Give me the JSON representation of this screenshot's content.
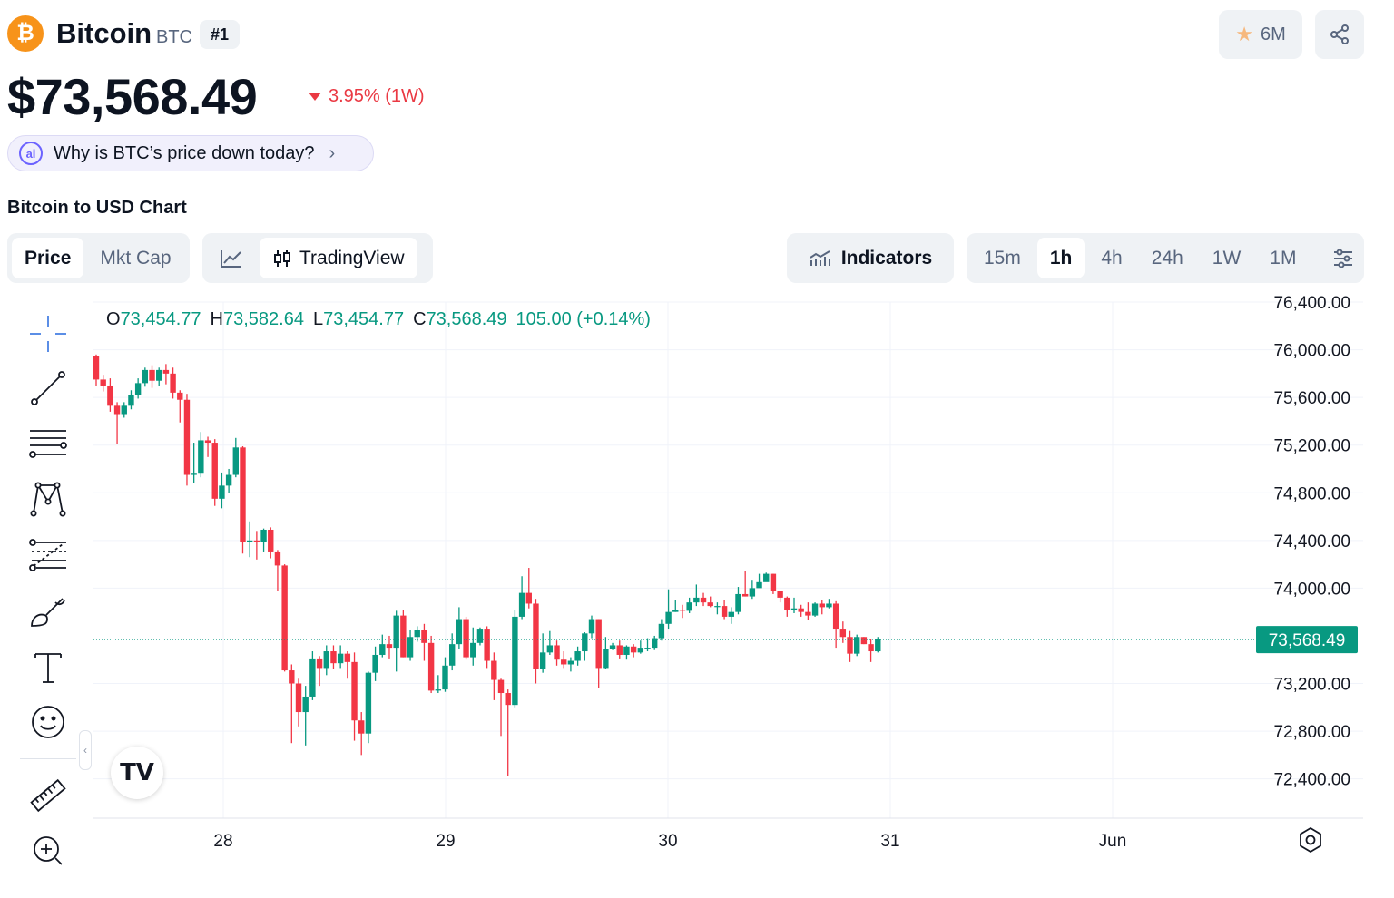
{
  "header": {
    "logo_glyph": "₿",
    "name": "Bitcoin",
    "symbol": "BTC",
    "rank": "#1",
    "watchlist_count": "6M",
    "price": "$73,568.49",
    "change": "3.95% (1W)",
    "change_color": "#ea3943"
  },
  "ai_prompt": {
    "label": "Why is BTC’s price down today?",
    "chevron": "›"
  },
  "chart_heading": "Bitcoin to USD Chart",
  "toolbar": {
    "price_tab": "Price",
    "mktcap_tab": "Mkt Cap",
    "tradingview": "TradingView",
    "indicators": "Indicators",
    "intervals": [
      "15m",
      "1h",
      "4h",
      "24h",
      "1W",
      "1M"
    ],
    "active_interval": "1h"
  },
  "ohlc": {
    "o_key": "O",
    "o": "73,454.77",
    "h_key": "H",
    "h": "73,582.64",
    "l_key": "L",
    "l": "73,454.77",
    "c_key": "C",
    "c": "73,568.49",
    "change": "105.00 (+0.14%)"
  },
  "tv_logo": "TV",
  "icons": [
    "bitcoin-logo-icon",
    "star-icon",
    "share-icon",
    "ai-sparkle-icon",
    "chevron-right-icon",
    "line-chart-icon",
    "candlestick-icon",
    "indicators-icon",
    "settings-sliders-icon",
    "crosshair-icon",
    "trend-line-icon",
    "horizontal-lines-icon",
    "pattern-icon",
    "fib-icon",
    "brush-icon",
    "text-icon",
    "emoji-icon",
    "ruler-icon",
    "zoom-in-icon",
    "gear-icon"
  ],
  "colors": {
    "up": "#089981",
    "down": "#f23645",
    "current_price_label": "#089981"
  },
  "chart_data": {
    "type": "candlestick",
    "title": "",
    "xlabel": "",
    "ylabel": "",
    "x_ticks": [
      "28",
      "29",
      "30",
      "31",
      "Jun"
    ],
    "y_ticks": [
      "76,400.00",
      "76,000.00",
      "75,600.00",
      "75,200.00",
      "74,800.00",
      "74,400.00",
      "74,000.00",
      "73,200.00",
      "72,800.00",
      "72,400.00"
    ],
    "ylim": [
      72070,
      76400
    ],
    "current_price_label": "73,568.49",
    "current_price": 73568.49,
    "candles": [
      [
        75950,
        75750,
        75960,
        75700
      ],
      [
        75750,
        75700,
        75790,
        75650
      ],
      [
        75700,
        75530,
        75760,
        75480
      ],
      [
        75530,
        75460,
        75560,
        75210
      ],
      [
        75460,
        75530,
        75560,
        75430
      ],
      [
        75530,
        75620,
        75660,
        75500
      ],
      [
        75620,
        75720,
        75760,
        75590
      ],
      [
        75720,
        75830,
        75850,
        75690
      ],
      [
        75830,
        75740,
        75870,
        75680
      ],
      [
        75740,
        75830,
        75850,
        75700
      ],
      [
        75830,
        75800,
        75880,
        75710
      ],
      [
        75800,
        75640,
        75850,
        75590
      ],
      [
        75640,
        75580,
        75660,
        75390
      ],
      [
        75580,
        74950,
        75630,
        74860
      ],
      [
        74950,
        74960,
        75220,
        74880
      ],
      [
        74960,
        75240,
        75310,
        74930
      ],
      [
        75240,
        75220,
        75270,
        75100
      ],
      [
        75220,
        74750,
        75250,
        74690
      ],
      [
        74750,
        74860,
        74970,
        74670
      ],
      [
        74860,
        74950,
        75000,
        74800
      ],
      [
        74950,
        75180,
        75260,
        74930
      ],
      [
        75180,
        74390,
        75190,
        74290
      ],
      [
        74390,
        74400,
        74560,
        74260
      ],
      [
        74400,
        74390,
        74480,
        74240
      ],
      [
        74390,
        74490,
        74500,
        74300
      ],
      [
        74490,
        74300,
        74510,
        74250
      ],
      [
        74300,
        74190,
        74320,
        73980
      ],
      [
        74190,
        73310,
        74200,
        73300
      ],
      [
        73310,
        73200,
        73360,
        72700
      ],
      [
        73200,
        72960,
        73240,
        72840
      ],
      [
        72960,
        73090,
        73180,
        72680
      ],
      [
        73090,
        73410,
        73470,
        73060
      ],
      [
        73410,
        73330,
        73430,
        73180
      ],
      [
        73330,
        73470,
        73520,
        73270
      ],
      [
        73470,
        73370,
        73520,
        73320
      ],
      [
        73370,
        73450,
        73520,
        73330
      ],
      [
        73450,
        73380,
        73470,
        73240
      ],
      [
        73380,
        72890,
        73460,
        72720
      ],
      [
        72890,
        72780,
        72960,
        72600
      ],
      [
        72780,
        73290,
        73300,
        72700
      ],
      [
        73290,
        73440,
        73510,
        73220
      ],
      [
        73440,
        73530,
        73610,
        73420
      ],
      [
        73530,
        73500,
        73600,
        73410
      ],
      [
        73500,
        73770,
        73810,
        73300
      ],
      [
        73770,
        73420,
        73820,
        73420
      ],
      [
        73420,
        73590,
        73650,
        73390
      ],
      [
        73590,
        73650,
        73680,
        73550
      ],
      [
        73650,
        73540,
        73700,
        73390
      ],
      [
        73540,
        73140,
        73600,
        73120
      ],
      [
        73140,
        73150,
        73270,
        73120
      ],
      [
        73150,
        73350,
        73420,
        73130
      ],
      [
        73350,
        73530,
        73620,
        73310
      ],
      [
        73530,
        73740,
        73840,
        73490
      ],
      [
        73740,
        73420,
        73760,
        73400
      ],
      [
        73420,
        73540,
        73670,
        73350
      ],
      [
        73540,
        73660,
        73670,
        73520
      ],
      [
        73660,
        73390,
        73680,
        73330
      ],
      [
        73390,
        73230,
        73460,
        73060
      ],
      [
        73230,
        73120,
        73240,
        72760
      ],
      [
        73120,
        73020,
        73150,
        72420
      ],
      [
        73020,
        73760,
        73820,
        73000
      ],
      [
        73760,
        73960,
        74100,
        73740
      ],
      [
        73960,
        73870,
        74170,
        73830
      ],
      [
        73870,
        73320,
        73910,
        73200
      ],
      [
        73320,
        73460,
        73620,
        73290
      ],
      [
        73460,
        73520,
        73640,
        73440
      ],
      [
        73520,
        73400,
        73560,
        73350
      ],
      [
        73400,
        73360,
        73470,
        73330
      ],
      [
        73360,
        73390,
        73420,
        73300
      ],
      [
        73390,
        73470,
        73510,
        73350
      ],
      [
        73470,
        73620,
        73630,
        73390
      ],
      [
        73620,
        73740,
        73770,
        73580
      ],
      [
        73740,
        73330,
        73740,
        73160
      ],
      [
        73330,
        73490,
        73590,
        73320
      ],
      [
        73490,
        73520,
        73540,
        73480
      ],
      [
        73520,
        73440,
        73560,
        73410
      ],
      [
        73440,
        73510,
        73520,
        73400
      ],
      [
        73510,
        73460,
        73530,
        73420
      ],
      [
        73460,
        73500,
        73560,
        73450
      ],
      [
        73500,
        73500,
        73580,
        73470
      ],
      [
        73500,
        73580,
        73600,
        73480
      ],
      [
        73580,
        73700,
        73740,
        73560
      ],
      [
        73700,
        73800,
        73990,
        73660
      ],
      [
        73800,
        73820,
        73900,
        73800
      ],
      [
        73820,
        73810,
        73860,
        73750
      ],
      [
        73810,
        73880,
        73920,
        73790
      ],
      [
        73880,
        73920,
        74030,
        73850
      ],
      [
        73920,
        73880,
        73960,
        73850
      ],
      [
        73880,
        73850,
        73930,
        73840
      ],
      [
        73850,
        73850,
        73880,
        73780
      ],
      [
        73850,
        73760,
        73900,
        73740
      ],
      [
        73760,
        73800,
        73840,
        73700
      ],
      [
        73800,
        73950,
        74010,
        73780
      ],
      [
        73950,
        73930,
        74140,
        73930
      ],
      [
        73930,
        74000,
        74070,
        73910
      ],
      [
        74000,
        74050,
        74120,
        74040
      ],
      [
        74050,
        74120,
        74130,
        74070
      ],
      [
        74120,
        73980,
        74120,
        73950
      ],
      [
        73980,
        73920,
        73980,
        73880
      ],
      [
        73920,
        73820,
        73930,
        73760
      ],
      [
        73820,
        73830,
        73920,
        73790
      ],
      [
        73830,
        73800,
        73860,
        73760
      ],
      [
        73800,
        73770,
        73880,
        73730
      ],
      [
        73770,
        73870,
        73880,
        73760
      ],
      [
        73870,
        73840,
        73900,
        73780
      ],
      [
        73840,
        73870,
        73910,
        73830
      ],
      [
        73870,
        73660,
        73890,
        73500
      ],
      [
        73660,
        73590,
        73720,
        73540
      ],
      [
        73590,
        73450,
        73640,
        73380
      ],
      [
        73450,
        73590,
        73610,
        73430
      ],
      [
        73590,
        73530,
        73590,
        73530
      ],
      [
        73530,
        73470,
        73570,
        73380
      ],
      [
        73470,
        73570,
        73590,
        73460
      ]
    ]
  }
}
